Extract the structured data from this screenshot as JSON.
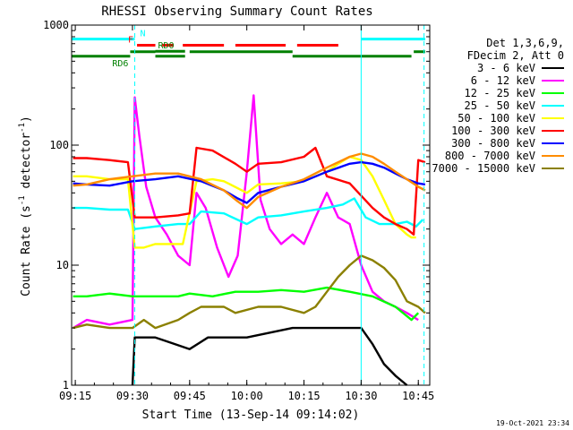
{
  "chart_data": {
    "type": "line",
    "title": "RHESSI Observing Summary Count Rates",
    "xlabel": "Start Time (13-Sep-14 09:14:02)",
    "ylabel_main": "Count Rate (s",
    "ylabel_sup1": "-1",
    "ylabel_mid": " detector",
    "ylabel_sup2": "-1",
    "ylabel_end": ")",
    "y_scale": "log",
    "ylim": [
      1,
      1000
    ],
    "xlim": [
      9.2339,
      10.8
    ],
    "x_ticks": [
      {
        "label": "09:15",
        "value": 9.25
      },
      {
        "label": "09:30",
        "value": 9.5
      },
      {
        "label": "09:45",
        "value": 9.75
      },
      {
        "label": "10:00",
        "value": 10.0
      },
      {
        "label": "10:15",
        "value": 10.25
      },
      {
        "label": "10:30",
        "value": 10.5
      },
      {
        "label": "10:45",
        "value": 10.75
      }
    ],
    "y_ticks": [
      {
        "label": "1",
        "value": 1
      },
      {
        "label": "10",
        "value": 10
      },
      {
        "label": "100",
        "value": 100
      },
      {
        "label": "1000",
        "value": 1000
      }
    ],
    "legend_header": [
      "Det 1,3,6,9,",
      "FDecim 2, Att 0"
    ],
    "legend_position": "right",
    "series": [
      {
        "name": "3 - 6 keV",
        "color": "#000000",
        "points": [
          [
            9.5,
            0.9
          ],
          [
            9.51,
            2.5
          ],
          [
            9.6,
            2.5
          ],
          [
            9.75,
            2.0
          ],
          [
            9.83,
            2.5
          ],
          [
            10.0,
            2.5
          ],
          [
            10.2,
            3.0
          ],
          [
            10.3,
            3.0
          ],
          [
            10.5,
            3.0
          ],
          [
            10.55,
            2.2
          ],
          [
            10.6,
            1.5
          ],
          [
            10.65,
            1.2
          ],
          [
            10.7,
            0.9
          ]
        ]
      },
      {
        "name": "6 - 12 keV",
        "color": "#ff00ff",
        "points": [
          [
            9.24,
            3.0
          ],
          [
            9.3,
            3.5
          ],
          [
            9.4,
            3.2
          ],
          [
            9.5,
            3.5
          ],
          [
            9.51,
            250
          ],
          [
            9.53,
            120
          ],
          [
            9.56,
            45
          ],
          [
            9.6,
            25
          ],
          [
            9.65,
            18
          ],
          [
            9.7,
            12
          ],
          [
            9.75,
            10
          ],
          [
            9.78,
            40
          ],
          [
            9.82,
            30
          ],
          [
            9.87,
            14
          ],
          [
            9.92,
            8
          ],
          [
            9.96,
            12
          ],
          [
            10.0,
            60
          ],
          [
            10.03,
            260
          ],
          [
            10.06,
            35
          ],
          [
            10.1,
            20
          ],
          [
            10.15,
            15
          ],
          [
            10.2,
            18
          ],
          [
            10.25,
            15
          ],
          [
            10.3,
            25
          ],
          [
            10.35,
            40
          ],
          [
            10.4,
            25
          ],
          [
            10.45,
            22
          ],
          [
            10.5,
            10
          ],
          [
            10.55,
            6
          ],
          [
            10.6,
            5
          ],
          [
            10.65,
            4.5
          ],
          [
            10.7,
            4.0
          ],
          [
            10.75,
            3.5
          ]
        ]
      },
      {
        "name": "12 - 25 keV",
        "color": "#00ff00",
        "points": [
          [
            9.24,
            5.5
          ],
          [
            9.3,
            5.5
          ],
          [
            9.4,
            5.8
          ],
          [
            9.5,
            5.5
          ],
          [
            9.55,
            5.5
          ],
          [
            9.6,
            5.5
          ],
          [
            9.7,
            5.5
          ],
          [
            9.75,
            5.8
          ],
          [
            9.85,
            5.5
          ],
          [
            9.95,
            6.0
          ],
          [
            10.05,
            6.0
          ],
          [
            10.15,
            6.2
          ],
          [
            10.25,
            6.0
          ],
          [
            10.35,
            6.5
          ],
          [
            10.45,
            6.0
          ],
          [
            10.55,
            5.5
          ],
          [
            10.65,
            4.5
          ],
          [
            10.72,
            3.5
          ],
          [
            10.75,
            4.0
          ]
        ]
      },
      {
        "name": "25 - 50 keV",
        "color": "#00ffff",
        "points": [
          [
            9.24,
            30
          ],
          [
            9.3,
            30
          ],
          [
            9.4,
            29
          ],
          [
            9.48,
            29
          ],
          [
            9.51,
            20
          ],
          [
            9.6,
            21
          ],
          [
            9.7,
            22
          ],
          [
            9.75,
            22
          ],
          [
            9.8,
            28
          ],
          [
            9.9,
            27
          ],
          [
            10.0,
            22
          ],
          [
            10.05,
            25
          ],
          [
            10.15,
            26
          ],
          [
            10.25,
            28
          ],
          [
            10.35,
            30
          ],
          [
            10.42,
            32
          ],
          [
            10.47,
            36
          ],
          [
            10.52,
            25
          ],
          [
            10.58,
            22
          ],
          [
            10.65,
            22
          ],
          [
            10.7,
            23
          ],
          [
            10.74,
            21
          ],
          [
            10.77,
            24
          ]
        ]
      },
      {
        "name": "50 - 100 keV",
        "color": "#ffff00",
        "points": [
          [
            9.24,
            55
          ],
          [
            9.3,
            55
          ],
          [
            9.4,
            52
          ],
          [
            9.48,
            52
          ],
          [
            9.51,
            14
          ],
          [
            9.55,
            14
          ],
          [
            9.6,
            15
          ],
          [
            9.65,
            15
          ],
          [
            9.72,
            15
          ],
          [
            9.78,
            50
          ],
          [
            9.85,
            52
          ],
          [
            9.9,
            50
          ],
          [
            10.0,
            40
          ],
          [
            10.05,
            47
          ],
          [
            10.15,
            48
          ],
          [
            10.25,
            50
          ],
          [
            10.3,
            55
          ],
          [
            10.35,
            60
          ],
          [
            10.4,
            70
          ],
          [
            10.45,
            80
          ],
          [
            10.5,
            75
          ],
          [
            10.55,
            55
          ],
          [
            10.6,
            35
          ],
          [
            10.65,
            22
          ],
          [
            10.7,
            18
          ],
          [
            10.72,
            17
          ],
          [
            10.74,
            17
          ]
        ]
      },
      {
        "name": "100 - 300 keV",
        "color": "#ff0000",
        "points": [
          [
            9.24,
            78
          ],
          [
            9.3,
            78
          ],
          [
            9.4,
            75
          ],
          [
            9.48,
            72
          ],
          [
            9.51,
            25
          ],
          [
            9.6,
            25
          ],
          [
            9.7,
            26
          ],
          [
            9.75,
            27
          ],
          [
            9.78,
            95
          ],
          [
            9.85,
            90
          ],
          [
            9.95,
            70
          ],
          [
            10.0,
            60
          ],
          [
            10.05,
            70
          ],
          [
            10.15,
            72
          ],
          [
            10.25,
            80
          ],
          [
            10.3,
            95
          ],
          [
            10.35,
            55
          ],
          [
            10.45,
            48
          ],
          [
            10.55,
            30
          ],
          [
            10.6,
            25
          ],
          [
            10.65,
            22
          ],
          [
            10.7,
            20
          ],
          [
            10.73,
            18
          ],
          [
            10.75,
            75
          ],
          [
            10.78,
            72
          ]
        ]
      },
      {
        "name": "300 - 800 keV",
        "color": "#0000ff",
        "points": [
          [
            9.24,
            48
          ],
          [
            9.3,
            47
          ],
          [
            9.4,
            46
          ],
          [
            9.5,
            50
          ],
          [
            9.6,
            52
          ],
          [
            9.7,
            55
          ],
          [
            9.8,
            50
          ],
          [
            9.9,
            42
          ],
          [
            9.96,
            36
          ],
          [
            10.0,
            33
          ],
          [
            10.05,
            40
          ],
          [
            10.15,
            45
          ],
          [
            10.25,
            50
          ],
          [
            10.35,
            60
          ],
          [
            10.45,
            70
          ],
          [
            10.5,
            72
          ],
          [
            10.55,
            70
          ],
          [
            10.6,
            65
          ],
          [
            10.65,
            58
          ],
          [
            10.7,
            52
          ],
          [
            10.75,
            48
          ],
          [
            10.78,
            47
          ]
        ]
      },
      {
        "name": "800 - 7000 keV",
        "color": "#ff8c00",
        "points": [
          [
            9.24,
            46
          ],
          [
            9.3,
            47
          ],
          [
            9.4,
            52
          ],
          [
            9.5,
            55
          ],
          [
            9.6,
            58
          ],
          [
            9.7,
            58
          ],
          [
            9.8,
            52
          ],
          [
            9.9,
            42
          ],
          [
            9.96,
            34
          ],
          [
            10.0,
            30
          ],
          [
            10.05,
            37
          ],
          [
            10.15,
            45
          ],
          [
            10.25,
            52
          ],
          [
            10.35,
            65
          ],
          [
            10.45,
            80
          ],
          [
            10.5,
            85
          ],
          [
            10.55,
            80
          ],
          [
            10.6,
            70
          ],
          [
            10.65,
            60
          ],
          [
            10.7,
            52
          ],
          [
            10.75,
            45
          ],
          [
            10.78,
            42
          ]
        ]
      },
      {
        "name": "7000 - 15000 keV",
        "color": "#8b8000",
        "points": [
          [
            9.24,
            3.0
          ],
          [
            9.3,
            3.2
          ],
          [
            9.4,
            3.0
          ],
          [
            9.5,
            3.0
          ],
          [
            9.55,
            3.5
          ],
          [
            9.6,
            3.0
          ],
          [
            9.7,
            3.5
          ],
          [
            9.75,
            4.0
          ],
          [
            9.8,
            4.5
          ],
          [
            9.9,
            4.5
          ],
          [
            9.95,
            4.0
          ],
          [
            10.05,
            4.5
          ],
          [
            10.15,
            4.5
          ],
          [
            10.25,
            4.0
          ],
          [
            10.3,
            4.5
          ],
          [
            10.35,
            6.0
          ],
          [
            10.4,
            8.0
          ],
          [
            10.45,
            10
          ],
          [
            10.5,
            12
          ],
          [
            10.55,
            11
          ],
          [
            10.6,
            9.5
          ],
          [
            10.65,
            7.5
          ],
          [
            10.7,
            5.0
          ],
          [
            10.75,
            4.5
          ],
          [
            10.78,
            4.0
          ]
        ]
      }
    ],
    "flags": [
      {
        "label": "N",
        "label_color": "#00ffff",
        "color": "#00ffff",
        "y_level": 765,
        "segments": [
          [
            9.2339,
            9.51
          ],
          [
            10.5,
            10.78
          ]
        ]
      },
      {
        "label": "F",
        "label_color": "#ff0000",
        "color": "#ff0000",
        "y_level": 680,
        "segments": [
          [
            9.52,
            9.6
          ],
          [
            9.63,
            9.68
          ],
          [
            9.72,
            9.9
          ],
          [
            9.95,
            10.17
          ],
          [
            10.22,
            10.4
          ]
        ]
      },
      {
        "label": "RD0",
        "label_color": "#008000",
        "color": "#008000",
        "y_level": 605,
        "segments": [
          [
            9.6,
            9.73
          ]
        ]
      },
      {
        "label": "RD6",
        "label_color": "#008000",
        "color": "#008000",
        "y_level": 550,
        "segments": [
          [
            9.2339,
            9.49
          ]
        ]
      },
      {
        "label": "",
        "label_color": "#008000",
        "color": "#008000",
        "y_level": 600,
        "segments": [
          [
            9.49,
            9.6
          ],
          [
            9.75,
            10.2
          ],
          [
            10.73,
            10.78
          ]
        ]
      },
      {
        "label": "",
        "label_color": "#008000",
        "color": "#008000",
        "y_level": 550,
        "segments": [
          [
            9.6,
            9.73
          ],
          [
            10.2,
            10.72
          ]
        ]
      }
    ],
    "vertical_markers": [
      {
        "x": 9.2339,
        "color": "#00ffff",
        "style": "solid"
      },
      {
        "x": 9.51,
        "color": "#00ffff",
        "style": "dashed"
      },
      {
        "x": 10.5,
        "color": "#00ffff",
        "style": "solid"
      },
      {
        "x": 10.775,
        "color": "#00ffff",
        "style": "dashed"
      }
    ],
    "timestamp": "19-Oct-2021 23:34"
  }
}
